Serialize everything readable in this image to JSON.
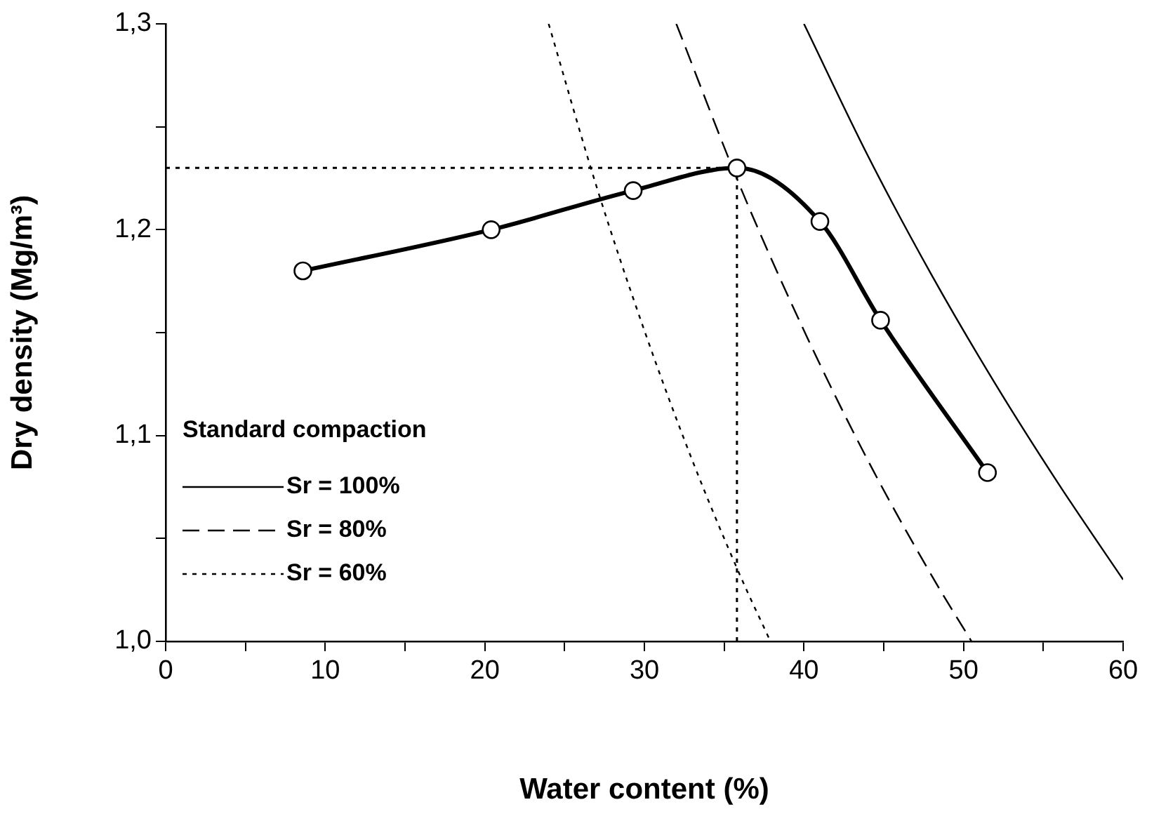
{
  "chart_data": {
    "type": "line",
    "xlabel": "Water content (%)",
    "ylabel": "Dry density (Mg/m³)",
    "legend_title": "Standard compaction",
    "legend": "bottom left",
    "grid": false,
    "xlim": [
      0,
      60
    ],
    "ylim": [
      1.0,
      1.3
    ],
    "xticks": [
      0,
      {
        "value": 5,
        "label": null
      },
      10,
      {
        "value": 15,
        "label": null
      },
      20,
      {
        "value": 25,
        "label": null
      },
      30,
      {
        "value": 35,
        "label": null
      },
      40,
      {
        "value": 45,
        "label": null
      },
      50,
      {
        "value": 55,
        "label": null
      },
      60
    ],
    "yticks": [
      {
        "value": 1.0,
        "label": "1,0"
      },
      {
        "value": 1.05,
        "label": null
      },
      {
        "value": 1.1,
        "label": "1,1"
      },
      {
        "value": 1.15,
        "label": null
      },
      {
        "value": 1.2,
        "label": "1,2"
      },
      {
        "value": 1.25,
        "label": null
      },
      {
        "value": 1.3,
        "label": "1,3"
      }
    ],
    "series": [
      {
        "color": "#000000",
        "marker": "circle",
        "line_style": "solid",
        "x": [
          8.6,
          20.4,
          29.3,
          35.8,
          41.0,
          44.8,
          51.5
        ],
        "values": [
          1.18,
          1.2,
          1.219,
          1.23,
          1.204,
          1.156,
          1.082
        ]
      },
      {
        "name": "Sr = 100%",
        "color": "#000000",
        "marker": "none",
        "line_style": "solid",
        "x": [
          40,
          44,
          48,
          52,
          56,
          60
        ],
        "values": [
          1.3,
          1.236,
          1.178,
          1.125,
          1.076,
          1.03
        ]
      },
      {
        "name": "Sr = 80%",
        "color": "#000000",
        "marker": "none",
        "line_style": "dashed",
        "x": [
          32,
          36,
          40,
          44,
          48,
          50.5
        ],
        "values": [
          1.3,
          1.221,
          1.151,
          1.088,
          1.032,
          1.0
        ]
      },
      {
        "name": "Sr = 60%",
        "color": "#000000",
        "marker": "none",
        "line_style": "dotted",
        "x": [
          24,
          27,
          30,
          33,
          36,
          37.9
        ],
        "values": [
          1.3,
          1.221,
          1.151,
          1.088,
          1.032,
          1.0
        ]
      }
    ],
    "ref_lines": [
      {
        "axis": "y",
        "value": 1.23,
        "color": "#000000",
        "line_style": "dotted"
      },
      {
        "axis": "x",
        "value": 35.8,
        "color": "#000000",
        "line_style": "dotted"
      }
    ]
  }
}
